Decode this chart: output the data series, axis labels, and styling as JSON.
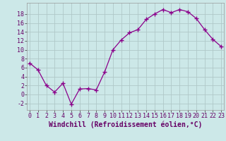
{
  "x": [
    0,
    1,
    2,
    3,
    4,
    5,
    6,
    7,
    8,
    9,
    10,
    11,
    12,
    13,
    14,
    15,
    16,
    17,
    18,
    19,
    20,
    21,
    22,
    23
  ],
  "y": [
    7,
    5.5,
    2,
    0.5,
    2.5,
    -2.2,
    1.2,
    1.3,
    1.0,
    5.0,
    10.0,
    12.2,
    13.8,
    14.5,
    16.8,
    18.0,
    19.0,
    18.3,
    19.0,
    18.5,
    17.0,
    14.5,
    12.3,
    10.7
  ],
  "line_color": "#8B008B",
  "marker": "+",
  "marker_size": 4,
  "background_color": "#cce8e8",
  "grid_color": "#b0c8c8",
  "xlabel": "Windchill (Refroidissement éolien,°C)",
  "yticks": [
    -2,
    0,
    2,
    4,
    6,
    8,
    10,
    12,
    14,
    16,
    18
  ],
  "xticks": [
    0,
    1,
    2,
    3,
    4,
    5,
    6,
    7,
    8,
    9,
    10,
    11,
    12,
    13,
    14,
    15,
    16,
    17,
    18,
    19,
    20,
    21,
    22,
    23
  ],
  "ylim": [
    -3.5,
    20.5
  ],
  "xlim": [
    -0.3,
    23.3
  ],
  "tick_label_fontsize": 6,
  "xlabel_fontsize": 7
}
